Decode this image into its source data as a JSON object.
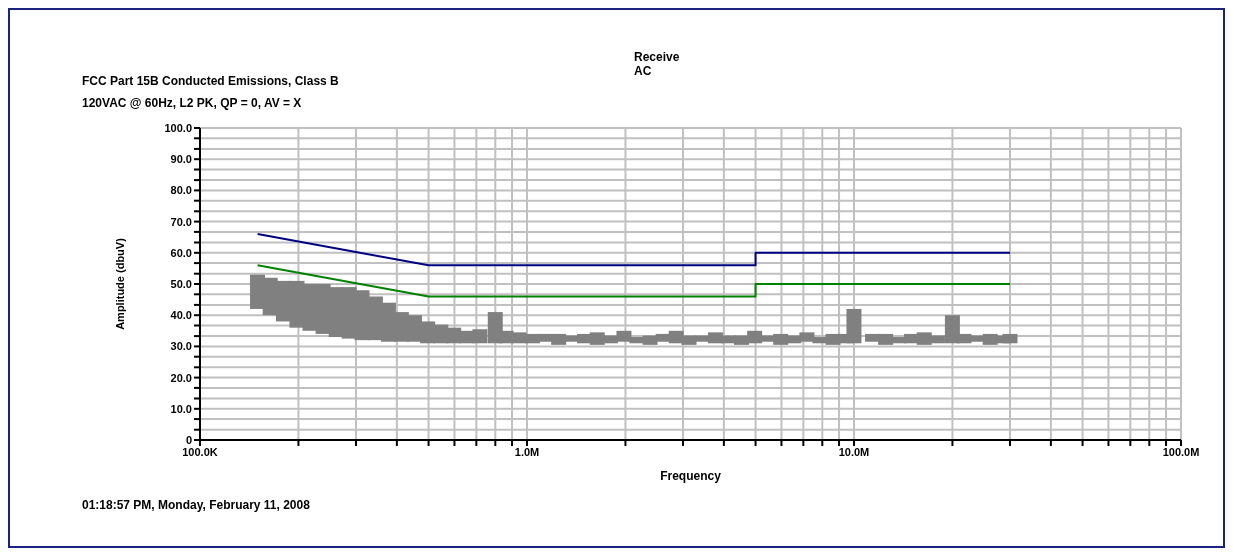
{
  "chart_data": {
    "type": "line",
    "title": "FCC Part 15B Conducted Emissions, Class B",
    "subtitle": "120VAC @ 60Hz, L2 PK, QP = 0, AV = X",
    "annotations": [
      "Receive",
      "AC",
      "01:18:57 PM, Monday, February 11, 2008"
    ],
    "xlabel": "Frequency",
    "ylabel": "Amplitude (dbuV)",
    "log": "x",
    "grid": true,
    "legend": false,
    "marker": "none",
    "xlim": [
      100000,
      100000000
    ],
    "xticks": [
      {
        "value": 100000,
        "label": "100.0K"
      },
      {
        "value": 200000,
        "label": null
      },
      {
        "value": 300000,
        "label": null
      },
      {
        "value": 400000,
        "label": null
      },
      {
        "value": 500000,
        "label": null
      },
      {
        "value": 600000,
        "label": null
      },
      {
        "value": 700000,
        "label": null
      },
      {
        "value": 800000,
        "label": null
      },
      {
        "value": 900000,
        "label": null
      },
      {
        "value": 1000000,
        "label": "1.0M"
      },
      {
        "value": 2000000,
        "label": null
      },
      {
        "value": 3000000,
        "label": null
      },
      {
        "value": 4000000,
        "label": null
      },
      {
        "value": 5000000,
        "label": null
      },
      {
        "value": 6000000,
        "label": null
      },
      {
        "value": 7000000,
        "label": null
      },
      {
        "value": 8000000,
        "label": null
      },
      {
        "value": 9000000,
        "label": null
      },
      {
        "value": 10000000,
        "label": "10.0M"
      },
      {
        "value": 20000000,
        "label": null
      },
      {
        "value": 30000000,
        "label": null
      },
      {
        "value": 40000000,
        "label": null
      },
      {
        "value": 50000000,
        "label": null
      },
      {
        "value": 60000000,
        "label": null
      },
      {
        "value": 70000000,
        "label": null
      },
      {
        "value": 80000000,
        "label": null
      },
      {
        "value": 90000000,
        "label": null
      },
      {
        "value": 100000000,
        "label": "100.0M"
      }
    ],
    "ylim": [
      0,
      100
    ],
    "yticks": [
      {
        "value": 0,
        "label": "0"
      },
      {
        "value": 3.3,
        "label": null
      },
      {
        "value": 6.7,
        "label": null
      },
      {
        "value": 10,
        "label": "10.0"
      },
      {
        "value": 13.3,
        "label": null
      },
      {
        "value": 16.7,
        "label": null
      },
      {
        "value": 20,
        "label": "20.0"
      },
      {
        "value": 23.3,
        "label": null
      },
      {
        "value": 26.7,
        "label": null
      },
      {
        "value": 30,
        "label": "30.0"
      },
      {
        "value": 33.3,
        "label": null
      },
      {
        "value": 36.7,
        "label": null
      },
      {
        "value": 40,
        "label": "40.0"
      },
      {
        "value": 43.3,
        "label": null
      },
      {
        "value": 46.7,
        "label": null
      },
      {
        "value": 50,
        "label": "50.0"
      },
      {
        "value": 53.3,
        "label": null
      },
      {
        "value": 56.7,
        "label": null
      },
      {
        "value": 60,
        "label": "60.0"
      },
      {
        "value": 63.3,
        "label": null
      },
      {
        "value": 66.7,
        "label": null
      },
      {
        "value": 70,
        "label": "70.0"
      },
      {
        "value": 73.3,
        "label": null
      },
      {
        "value": 76.7,
        "label": null
      },
      {
        "value": 80,
        "label": "80.0"
      },
      {
        "value": 83.3,
        "label": null
      },
      {
        "value": 86.7,
        "label": null
      },
      {
        "value": 90,
        "label": "90.0"
      },
      {
        "value": 93.3,
        "label": null
      },
      {
        "value": 96.7,
        "label": null
      },
      {
        "value": 100,
        "label": "100.0"
      }
    ],
    "series": [
      {
        "type": "bar",
        "color": "#808080",
        "x": [
          150000,
          164000,
          180000,
          198000,
          217000,
          238000,
          261000,
          286000,
          313000,
          344000,
          377000,
          413000,
          453000,
          497000,
          545000,
          597000,
          655000,
          718000,
          800000,
          863000,
          946000,
          1040000,
          1140000,
          1250000,
          1370000,
          1500000,
          1640000,
          1800000,
          1980000,
          2170000,
          2380000,
          2610000,
          2860000,
          3130000,
          3440000,
          3770000,
          4130000,
          4530000,
          4970000,
          5450000,
          5970000,
          6550000,
          7180000,
          7870000,
          8630000,
          9460000,
          10000000,
          11400000,
          12500000,
          13700000,
          15000000,
          16400000,
          18000000,
          20000000,
          21700000,
          23800000,
          26100000,
          28600000,
          30000000
        ],
        "base": [
          42,
          40,
          38,
          36,
          35,
          34,
          33,
          32.5,
          32,
          32,
          31.5,
          31.5,
          31.5,
          31,
          31,
          31,
          31,
          31,
          31,
          31,
          31,
          31,
          31.5,
          30.5,
          31.5,
          31,
          30.5,
          31,
          31.5,
          31,
          30.5,
          31.5,
          31,
          30.5,
          31.5,
          31,
          31,
          30.5,
          31,
          31.5,
          30.5,
          31,
          31.5,
          31,
          30.5,
          31,
          31,
          31.5,
          30.5,
          31,
          31,
          30.5,
          31,
          31,
          31,
          31.5,
          30.5,
          31,
          31
        ],
        "values": [
          11,
          12,
          13,
          15,
          15,
          16,
          16,
          16.5,
          16,
          14,
          12.5,
          9.5,
          8.5,
          7,
          6,
          5,
          4,
          4.5,
          10,
          4,
          3.5,
          3,
          2.5,
          3.5,
          2,
          3,
          4,
          2.5,
          3.5,
          2,
          3,
          2.5,
          4,
          3,
          2,
          3.5,
          2.5,
          3,
          4,
          2,
          3.5,
          2.5,
          3,
          2,
          3.5,
          3,
          11,
          2.5,
          3.5,
          2,
          3,
          4,
          2.5,
          9,
          3,
          2,
          3.5,
          2.5,
          3
        ]
      },
      {
        "type": "line",
        "color": "#000080",
        "x": [
          150000,
          500000,
          5000000,
          5000000,
          30000000
        ],
        "values": [
          66,
          56,
          56,
          60,
          60
        ]
      },
      {
        "color": "#008000",
        "x": [
          150000,
          500000,
          5000000,
          5000000,
          30000000
        ],
        "values": [
          56,
          46,
          46,
          50,
          50
        ]
      }
    ]
  }
}
